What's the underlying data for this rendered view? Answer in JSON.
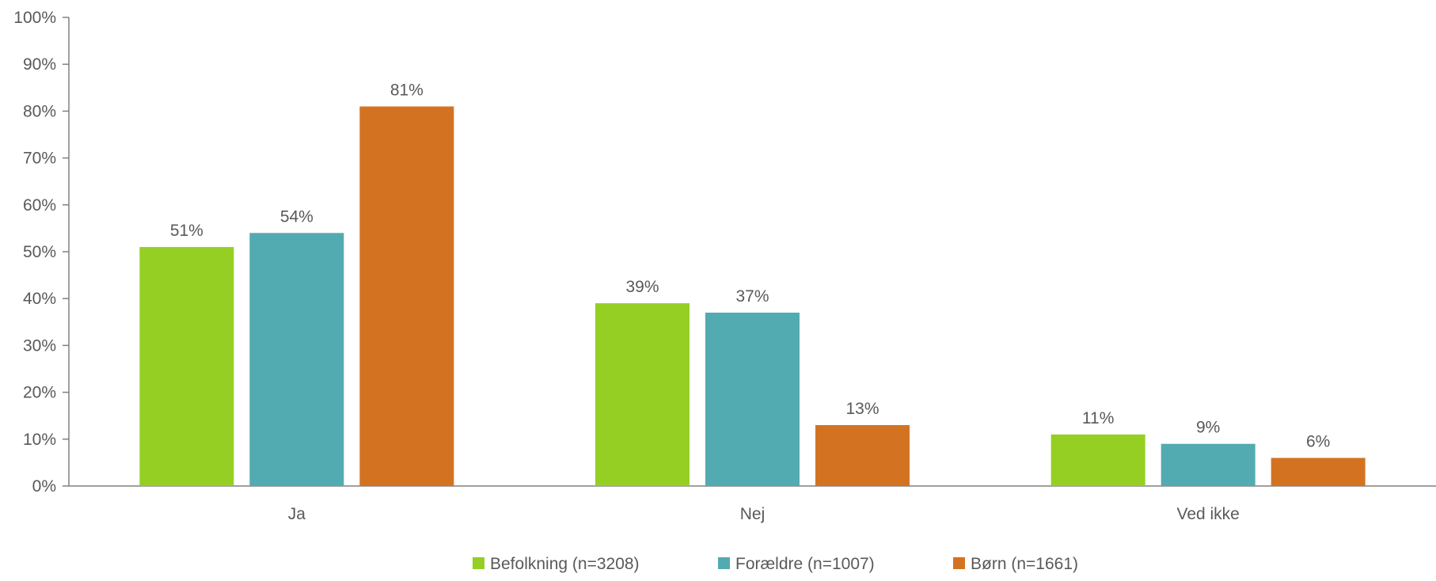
{
  "chart_data": {
    "type": "bar",
    "title": "",
    "xlabel": "",
    "ylabel": "",
    "categories": [
      "Ja",
      "Nej",
      "Ved ikke"
    ],
    "ylim": [
      0,
      100
    ],
    "yticks": [
      0,
      10,
      20,
      30,
      40,
      50,
      60,
      70,
      80,
      90,
      100
    ],
    "ytick_labels": [
      "0%",
      "10%",
      "20%",
      "30%",
      "40%",
      "50%",
      "60%",
      "70%",
      "80%",
      "90%",
      "100%"
    ],
    "value_suffix": "%",
    "grid": false,
    "legend_position": "bottom",
    "series": [
      {
        "name": "Befolkning (n=3208)",
        "color": "#95CF24",
        "values": [
          51,
          39,
          11
        ]
      },
      {
        "name": "Forældre (n=1007)",
        "color": "#52ABB0",
        "values": [
          54,
          37,
          9
        ]
      },
      {
        "name": "Børn (n=1661)",
        "color": "#D37322",
        "values": [
          81,
          13,
          6
        ]
      }
    ],
    "axis_color": "#808080",
    "text_color": "#595959"
  }
}
